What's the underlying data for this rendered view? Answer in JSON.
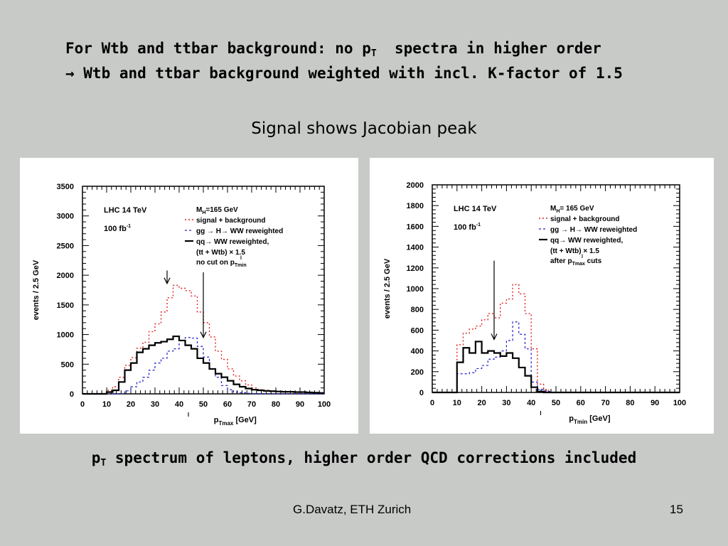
{
  "slide": {
    "line1_prefix": "For Wtb and ttbar background: no p",
    "line1_sub": "T",
    "line1_suffix": "  spectra in higher order",
    "line2": "→ Wtb and ttbar background weighted with incl. K-factor of 1.5",
    "jacobian": "Signal shows Jacobian peak",
    "caption_prefix": "p",
    "caption_sub": "T",
    "caption_suffix": " spectrum of leptons, higher order QCD corrections included",
    "author": "G.Davatz, ETH Zurich",
    "page": "15"
  },
  "chart_data": [
    {
      "type": "line",
      "ylabel": "events  / 2.5 GeV",
      "xlabel": "p",
      "xlabel_sup": "l",
      "xlabel_sub": "Tmax",
      "xlabel_unit": "[GeV]",
      "xlim": [
        0,
        100
      ],
      "ylim": [
        0,
        3500
      ],
      "xticks": [
        0,
        10,
        20,
        30,
        40,
        50,
        60,
        70,
        80,
        90,
        100
      ],
      "yticks": [
        0,
        500,
        1000,
        1500,
        2000,
        2500,
        3000,
        3500
      ],
      "bin_width": 2.5,
      "annotations": {
        "lhc": "LHC 14 TeV",
        "lumi": "100 fb",
        "lumi_sup": "-1",
        "mass": "M",
        "mass_sub": "H",
        "mass_val": "=165 GeV",
        "legend_sig": "signal + background",
        "legend_gg": "gg → H→ WW reweighted",
        "legend_qq1": "qq→ WW reweighted,",
        "legend_qq2": "(tt + Wtb) × 1.5",
        "cut": "no cut on p",
        "cut_sup": "l",
        "cut_sub": "Tmin"
      },
      "arrows": [
        35,
        50
      ],
      "colors": {
        "signal": "#e02020",
        "gg": "#2020c8",
        "qq": "#000000"
      },
      "series": [
        {
          "key": "signal",
          "values": [
            0,
            0,
            0,
            0,
            60,
            120,
            280,
            480,
            610,
            770,
            870,
            1050,
            1180,
            1380,
            1620,
            1830,
            1780,
            1740,
            1650,
            1380,
            1200,
            960,
            720,
            580,
            420,
            300,
            220,
            150,
            100,
            70,
            60,
            50,
            40,
            30,
            30,
            25,
            25,
            20,
            20,
            15
          ]
        },
        {
          "key": "gg",
          "values": [
            0,
            0,
            0,
            0,
            0,
            0,
            0,
            50,
            120,
            200,
            280,
            400,
            520,
            600,
            720,
            760,
            900,
            950,
            940,
            800,
            620,
            420,
            280,
            140,
            70,
            30,
            20,
            10,
            5,
            0,
            0,
            0,
            0,
            0,
            0,
            0,
            0,
            0,
            0,
            0
          ]
        },
        {
          "key": "qq",
          "values": [
            0,
            0,
            0,
            0,
            30,
            60,
            200,
            400,
            520,
            700,
            760,
            820,
            860,
            880,
            920,
            970,
            900,
            820,
            760,
            600,
            520,
            420,
            340,
            280,
            220,
            160,
            120,
            90,
            70,
            60,
            50,
            45,
            40,
            35,
            35,
            30,
            30,
            25,
            20,
            15
          ]
        }
      ]
    },
    {
      "type": "line",
      "ylabel": "events  / 2.5 GeV",
      "xlabel": "p",
      "xlabel_sup": "l",
      "xlabel_sub": "Tmin",
      "xlabel_unit": "[GeV]",
      "xlim": [
        0,
        100
      ],
      "ylim": [
        0,
        2000
      ],
      "xticks": [
        0,
        10,
        20,
        30,
        40,
        50,
        60,
        70,
        80,
        90,
        100
      ],
      "yticks": [
        0,
        200,
        400,
        600,
        800,
        1000,
        1200,
        1400,
        1600,
        1800,
        2000
      ],
      "bin_width": 2.5,
      "annotations": {
        "lhc": "LHC 14 TeV",
        "lumi": "100 fb",
        "lumi_sup": "-1",
        "mass": "M",
        "mass_sub": "H",
        "mass_val": "= 165 GeV",
        "legend_sig": "signal + background",
        "legend_gg": "gg → H→ WW reweighted",
        "legend_qq1": "qq→ WW reweighted,",
        "legend_qq2": "(tt + Wtb) × 1.5",
        "cut": "after p",
        "cut_sup": "l",
        "cut_sub": "Tmax",
        "cut_suffix": " cuts"
      },
      "arrows": [
        25
      ],
      "colors": {
        "signal": "#e02020",
        "gg": "#2020c8",
        "qq": "#000000"
      },
      "series": [
        {
          "key": "signal",
          "values": [
            0,
            0,
            0,
            0,
            460,
            570,
            610,
            640,
            700,
            760,
            720,
            860,
            900,
            1040,
            950,
            760,
            420,
            80,
            20,
            0,
            0,
            0,
            0,
            0,
            0,
            0,
            0,
            0,
            0,
            0,
            0,
            0,
            0,
            0,
            0,
            0,
            0,
            0,
            0,
            0
          ]
        },
        {
          "key": "gg",
          "values": [
            0,
            0,
            0,
            0,
            180,
            180,
            190,
            230,
            260,
            320,
            340,
            400,
            500,
            680,
            560,
            420,
            100,
            30,
            10,
            0,
            0,
            0,
            0,
            0,
            0,
            0,
            0,
            0,
            0,
            0,
            0,
            0,
            0,
            0,
            0,
            0,
            0,
            0,
            0,
            0
          ]
        },
        {
          "key": "qq",
          "values": [
            0,
            0,
            0,
            0,
            290,
            430,
            380,
            490,
            380,
            400,
            380,
            350,
            380,
            330,
            240,
            160,
            50,
            10,
            0,
            0,
            0,
            0,
            0,
            0,
            0,
            0,
            0,
            0,
            0,
            0,
            0,
            0,
            0,
            0,
            0,
            0,
            0,
            0,
            0,
            0
          ]
        }
      ]
    }
  ]
}
